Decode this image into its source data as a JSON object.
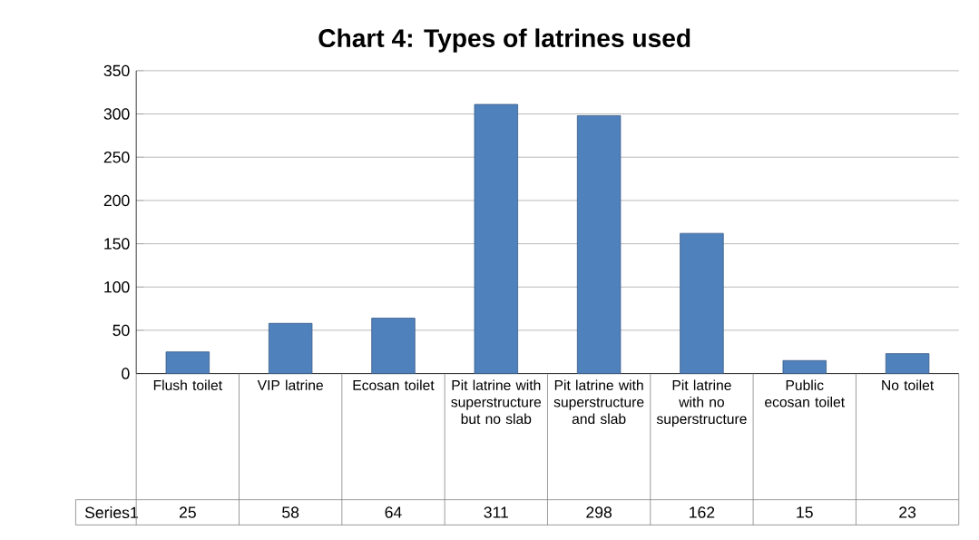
{
  "chart_data": {
    "type": "bar",
    "title": "Chart 4: Types of latrines used",
    "categories": [
      "Flush toilet",
      "VIP latrine",
      "Ecosan toilet",
      "Pit latrine with superstructure but no slab",
      "Pit latrine with superstructure and slab",
      "Pit latrine with no superstructure",
      "Public ecosan toilet",
      "No toilet"
    ],
    "series": [
      {
        "name": "Series1",
        "color": "#4f81bd",
        "values": [
          25,
          58,
          64,
          311,
          298,
          162,
          15,
          23
        ]
      }
    ],
    "ylim": [
      0,
      350
    ],
    "yticks": [
      0,
      50,
      100,
      150,
      200,
      250,
      300,
      350
    ],
    "grid": "y",
    "data_labels": true
  }
}
